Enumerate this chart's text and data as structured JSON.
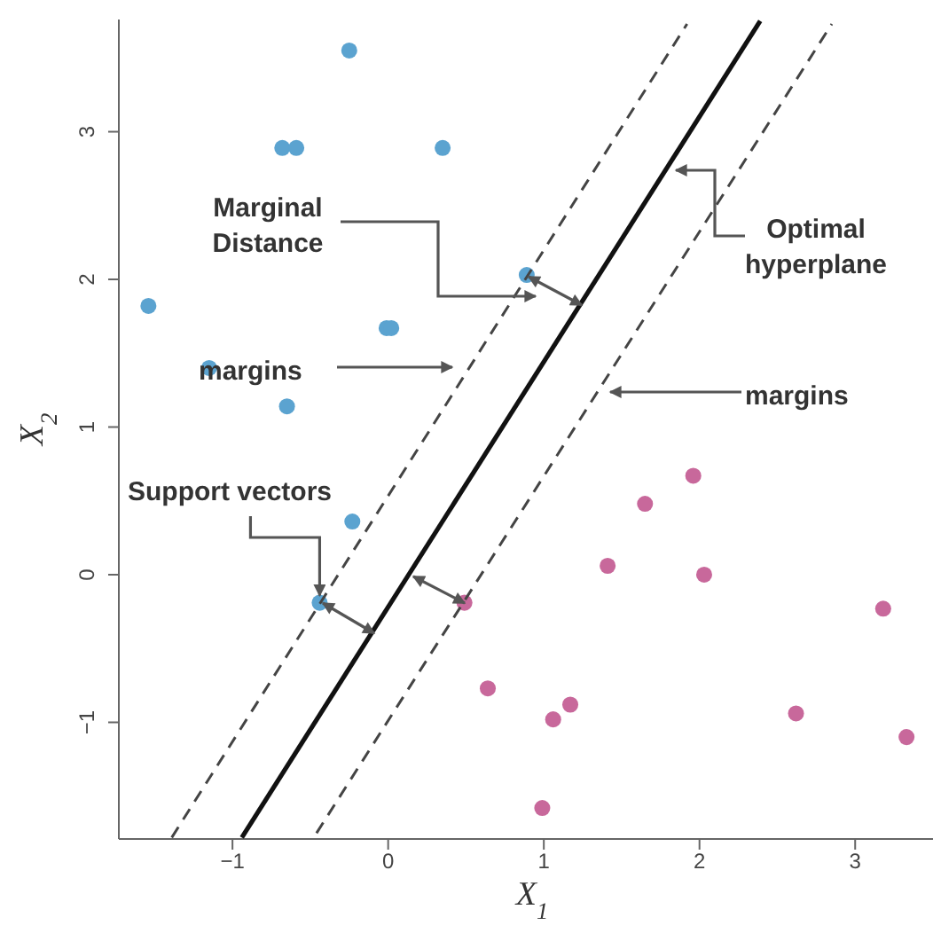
{
  "chart_data": {
    "type": "scatter",
    "xlabel": "X$_{1}$",
    "ylabel": "X$_{2}$",
    "xlim": [
      -1.73,
      3.5
    ],
    "ylim": [
      -1.79,
      3.76
    ],
    "xticks": [
      {
        "value": -1,
        "label": "−1"
      },
      0,
      1,
      2,
      3
    ],
    "yticks": [
      {
        "value": -1,
        "label": "−1"
      },
      0,
      1,
      2,
      3
    ],
    "grid": false,
    "series": [
      {
        "color": "#5ba3d0",
        "marker": "circle",
        "x": [
          -0.25,
          -0.68,
          -0.59,
          0.35,
          -1.54,
          0.89,
          -0.01,
          0.02,
          -1.15,
          -0.65,
          -0.23,
          -0.44
        ],
        "values": [
          3.55,
          2.89,
          2.89,
          2.89,
          1.82,
          2.03,
          1.67,
          1.67,
          1.4,
          1.14,
          0.36,
          -0.19
        ]
      },
      {
        "color": "#c8689b",
        "marker": "circle",
        "x": [
          1.96,
          1.65,
          1.41,
          2.03,
          0.49,
          3.18,
          0.64,
          1.17,
          1.06,
          2.62,
          3.33,
          0.99
        ],
        "values": [
          0.67,
          0.48,
          0.06,
          0.0,
          -0.19,
          -0.23,
          -0.77,
          -0.88,
          -0.98,
          -0.94,
          -1.1,
          -1.58
        ]
      },
      {
        "type": "line",
        "color": "#111111",
        "line_style": "solid",
        "marker": "none",
        "x": [
          -0.94,
          2.39
        ],
        "values": [
          -1.78,
          3.75
        ]
      },
      {
        "type": "line",
        "color": "#444444",
        "line_style": "dashed",
        "marker": "none",
        "x": [
          -1.39,
          1.92
        ],
        "values": [
          -1.78,
          3.73
        ]
      },
      {
        "type": "line",
        "color": "#444444",
        "line_style": "dashed",
        "marker": "none",
        "x": [
          -0.46,
          2.85
        ],
        "values": [
          -1.75,
          3.73
        ]
      }
    ],
    "annotations": [
      "Marginal Distance",
      "Optimal hyperplane",
      "margins",
      "margins",
      {
        "text": "Support vectors",
        "x": -0.44,
        "y": -0.19
      }
    ]
  }
}
